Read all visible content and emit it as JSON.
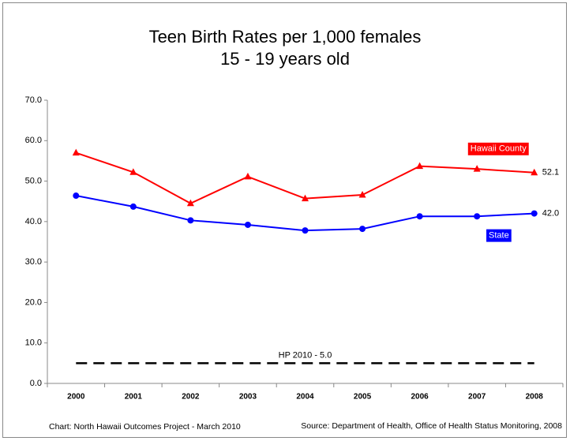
{
  "chart_data": {
    "type": "line",
    "title": "Teen Birth Rates per 1,000 females",
    "subtitle": "15 - 19 years old",
    "categories": [
      "2000",
      "2001",
      "2002",
      "2003",
      "2004",
      "2005",
      "2006",
      "2007",
      "2008"
    ],
    "series": [
      {
        "name": "Hawaii County",
        "color": "#ff0000",
        "marker": "triangle",
        "values": [
          57.0,
          52.2,
          44.5,
          51.1,
          45.7,
          46.6,
          53.7,
          53.0,
          52.1
        ],
        "value_labels": [
          null,
          null,
          null,
          null,
          null,
          null,
          null,
          null,
          "52.1"
        ]
      },
      {
        "name": "State",
        "color": "#0000ff",
        "marker": "circle",
        "values": [
          46.4,
          43.7,
          40.3,
          39.2,
          37.8,
          38.2,
          41.3,
          41.3,
          42.0
        ],
        "value_labels": [
          null,
          null,
          null,
          null,
          null,
          null,
          null,
          null,
          "42.0"
        ]
      }
    ],
    "reference": {
      "value": 5.0,
      "label": "HP 2010 - 5.0"
    },
    "ylim": [
      0,
      70
    ],
    "yticks": [
      {
        "value": 0,
        "label": "0.0"
      },
      {
        "value": 10,
        "label": "10.0"
      },
      {
        "value": 20,
        "label": "20.0"
      },
      {
        "value": 30,
        "label": "30.0"
      },
      {
        "value": 40,
        "label": "40.0"
      },
      {
        "value": 50,
        "label": "50.0"
      },
      {
        "value": 60,
        "label": "60.0"
      },
      {
        "value": 70,
        "label": "70.0"
      }
    ],
    "grid": false,
    "notes": [
      "Chart: North Hawaii Outcomes Project - March 2010",
      "Source: Department of Health, Office of  Health Status Monitoring, 2008"
    ]
  }
}
